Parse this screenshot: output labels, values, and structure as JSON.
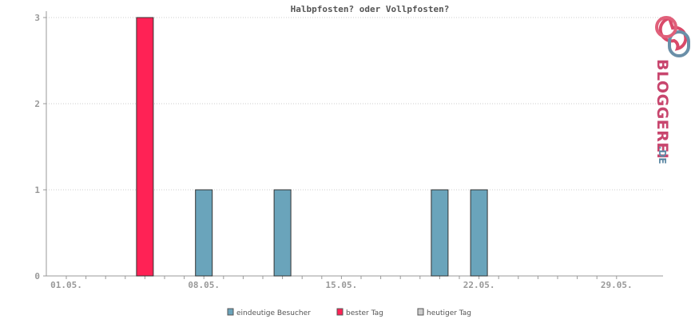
{
  "chart_data": {
    "type": "bar",
    "title": "Halbpfosten? oder Vollpfosten?",
    "xlabel": "",
    "ylabel": "",
    "x_start_label": "01.05.",
    "x_tick_labels": [
      "01.05.",
      "08.05.",
      "15.05.",
      "22.05.",
      "29.05."
    ],
    "y_tick_labels": [
      "0",
      "1",
      "2",
      "3"
    ],
    "ylim": [
      0,
      3
    ],
    "grid": true,
    "legend_position": "bottom-center",
    "series": [
      {
        "name": "eindeutige Besucher",
        "color": "#6aa4bb",
        "points": [
          {
            "x": "08.05.",
            "y": 1
          },
          {
            "x": "12.05.",
            "y": 1
          },
          {
            "x": "20.05.",
            "y": 1
          },
          {
            "x": "22.05.",
            "y": 1
          }
        ]
      },
      {
        "name": "bester Tag",
        "color": "#ff2255",
        "points": [
          {
            "x": "05.05.",
            "y": 3
          }
        ]
      },
      {
        "name": "heutiger Tag",
        "color": "#cccccc",
        "points": []
      }
    ]
  },
  "logo": {
    "text": "BLOGGEREI",
    "suffix": ".DE",
    "icon": "speech-bubbles-icon"
  }
}
